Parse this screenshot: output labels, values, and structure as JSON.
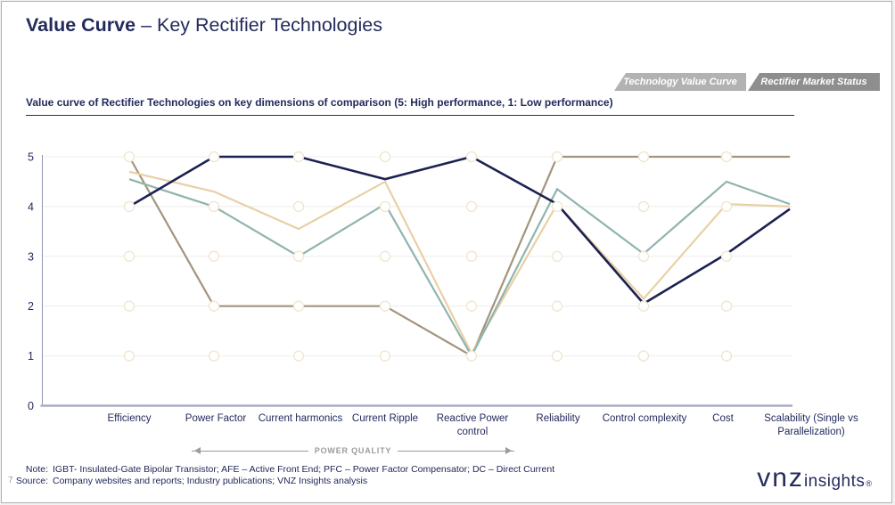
{
  "slide": {
    "title_bold": "Value Curve",
    "title_rest": " – Key Rectifier Technologies",
    "tabs": [
      {
        "label": "Technology Value Curve",
        "active": false
      },
      {
        "label": "Rectifier Market Status",
        "active": true
      }
    ],
    "subtitle": "Value curve of Rectifier Technologies on key dimensions of comparison (5: High performance, 1: Low performance)",
    "page_number": "7",
    "note_label": "Note:",
    "note_text": "IGBT-  Insulated-Gate Bipolar Transistor; AFE – Active Front End; PFC – Power Factor Compensator; DC – Direct Current",
    "source_label": "Source:",
    "source_text": "Company websites and reports; Industry publications; VNZ Insights analysis",
    "logo": {
      "main": "vnz",
      "sub": "insights",
      "mark": "®"
    }
  },
  "chart_data": {
    "type": "line",
    "title": "Value curve of Rectifier Technologies on key dimensions of comparison",
    "xlabel": "",
    "ylabel": "",
    "ylim": [
      0,
      5
    ],
    "yticks": [
      0,
      1,
      2,
      3,
      4,
      5
    ],
    "grid": "horizontal",
    "legend_position": "none",
    "categories": [
      "Efficiency",
      "Power Factor",
      "Current harmonics",
      "Current Ripple",
      "Reactive Power control",
      "Reliability",
      "Control complexity",
      "Cost",
      "Scalability (Single vs Parallelization)"
    ],
    "series": [
      {
        "name": "navy-series",
        "color": "#1b2150",
        "width": 2.6,
        "values": [
          4.0,
          5.0,
          5.0,
          4.55,
          5.0,
          4.05,
          2.05,
          3.05,
          3.95
        ]
      },
      {
        "name": "teal-series",
        "color": "#8fb4ae",
        "width": 2.2,
        "values": [
          4.55,
          4.0,
          3.0,
          4.05,
          1.0,
          4.35,
          3.05,
          4.5,
          4.05
        ]
      },
      {
        "name": "beige-series",
        "color": "#e8d0a4",
        "width": 2.2,
        "values": [
          4.7,
          4.3,
          3.55,
          4.5,
          1.05,
          4.05,
          2.15,
          4.05,
          4.0
        ]
      },
      {
        "name": "brown-series",
        "color": "#a3947c",
        "width": 2.2,
        "values": [
          5.0,
          2.0,
          2.0,
          2.0,
          1.0,
          5.0,
          5.0,
          5.0,
          5.0
        ]
      }
    ],
    "annotation": {
      "label": "POWER QUALITY",
      "span": [
        "Power Factor",
        "Reactive Power control"
      ]
    },
    "marker_grid": {
      "values": [
        1,
        2,
        3,
        4,
        5
      ],
      "fill": "#ffffff",
      "stroke": "#f1e5ce"
    }
  },
  "colors": {
    "heading": "#232a5c",
    "tab_inactive": "#b2b2b2",
    "tab_active": "#8e8e8e",
    "gridline": "#eeeeee",
    "axis_bottom": "#a9adc4",
    "axis_left": "#8f96b3",
    "annotation_gray": "#9b9b9b"
  }
}
